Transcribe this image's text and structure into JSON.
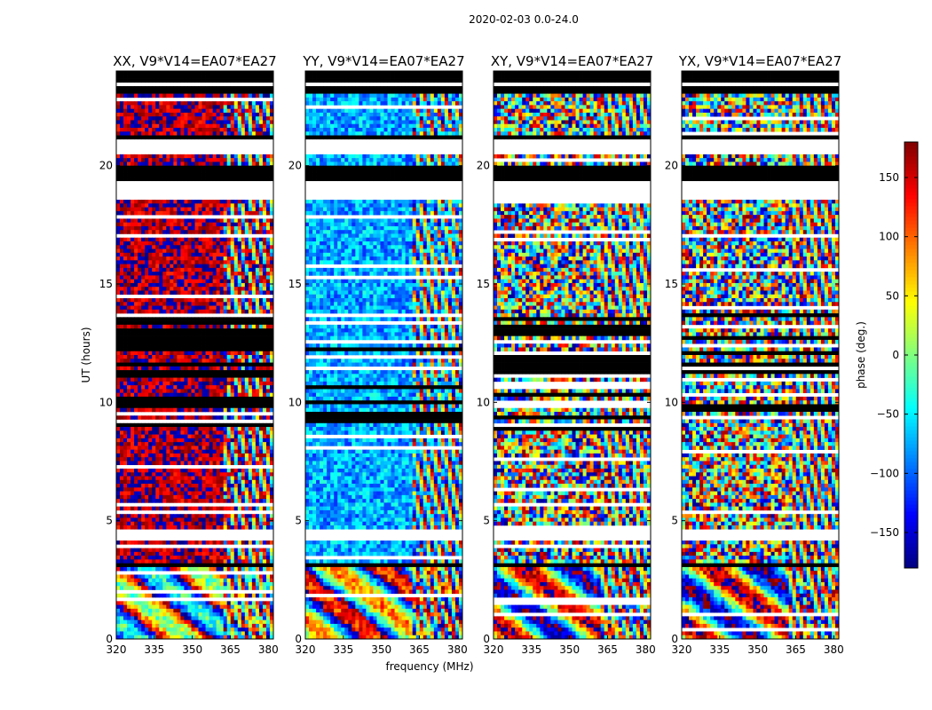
{
  "figure": {
    "suptitle": "2020-02-03 0.0-24.0"
  },
  "chart_data": {
    "type": "heatmap",
    "panels": [
      {
        "title": "XX, V9*V14=EA07*EA27",
        "base_phase": 165,
        "base_spread": 45
      },
      {
        "title": "YY, V9*V14=EA07*EA27",
        "base_phase": -75,
        "base_spread": 45
      },
      {
        "title": "XY, V9*V14=EA07*EA27",
        "base_phase": 0,
        "base_spread": 180
      },
      {
        "title": "YX, V9*V14=EA07*EA27",
        "base_phase": 0,
        "base_spread": 180
      }
    ],
    "xlabel": "frequency (MHz)",
    "ylabel": "UT (hours)",
    "xlim": [
      320,
      382
    ],
    "ylim": [
      0,
      24
    ],
    "xticks": [
      "320",
      "335",
      "350",
      "365",
      "380"
    ],
    "xtick_values": [
      320,
      335,
      350,
      365,
      380
    ],
    "yticks": [
      "0",
      "5",
      "10",
      "15",
      "20"
    ],
    "ytick_values": [
      0,
      5,
      10,
      15,
      20
    ],
    "colorbar": {
      "label": "phase (deg.)",
      "range": [
        -180,
        180
      ],
      "ticks": [
        "−150",
        "−100",
        "−50",
        "0",
        "50",
        "100",
        "150"
      ],
      "tick_values": [
        -150,
        -100,
        -50,
        0,
        50,
        100,
        150
      ],
      "colormap": "jet"
    },
    "flagged_time_ranges_hours": [
      [
        23.0,
        23.3
      ],
      [
        23.6,
        24.0
      ],
      [
        21.1,
        21.3
      ],
      [
        19.35,
        20.05
      ],
      [
        4.1,
        4.7
      ],
      [
        3.05,
        3.25
      ]
    ],
    "blank_time_ranges_hours": [
      [
        23.3,
        23.6
      ],
      [
        20.55,
        21.1
      ],
      [
        18.6,
        19.35
      ],
      [
        4.2,
        4.6
      ]
    ]
  }
}
